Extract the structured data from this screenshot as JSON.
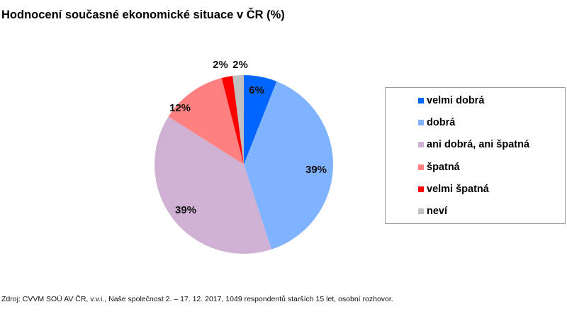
{
  "title": "Hodnocení současné ekonomické situace v ČR (%)",
  "source": "Zdroj: CVVM SOÚ AV ČR, v.v.i., Naše společnost 2. – 17. 12. 2017, 1049 respondentů starších 15 let, osobní rozhovor.",
  "legend": {
    "items": [
      {
        "label": "velmi dobrá",
        "color": "#0066ff"
      },
      {
        "label": "dobrá",
        "color": "#80b3ff"
      },
      {
        "label": "ani dobrá, ani špatná",
        "color": "#d1b1d3"
      },
      {
        "label": "špatná",
        "color": "#ff8080"
      },
      {
        "label": "velmi špatná",
        "color": "#ff0000"
      },
      {
        "label": "neví",
        "color": "#c0c0c0"
      }
    ]
  },
  "chart_data": {
    "type": "pie",
    "title": "Hodnocení současné ekonomické situace v ČR (%)",
    "categories": [
      "velmi dobrá",
      "dobrá",
      "ani dobrá, ani špatná",
      "špatná",
      "velmi špatná",
      "neví"
    ],
    "values": [
      6,
      39,
      39,
      12,
      2,
      2
    ],
    "labels": [
      "6%",
      "39%",
      "39%",
      "12%",
      "2%",
      "2%"
    ],
    "colors": [
      "#0066ff",
      "#80b3ff",
      "#d1b1d3",
      "#ff8080",
      "#ff0000",
      "#c0c0c0"
    ],
    "start_angle": "12 o'clock, clockwise",
    "legend_position": "right"
  }
}
